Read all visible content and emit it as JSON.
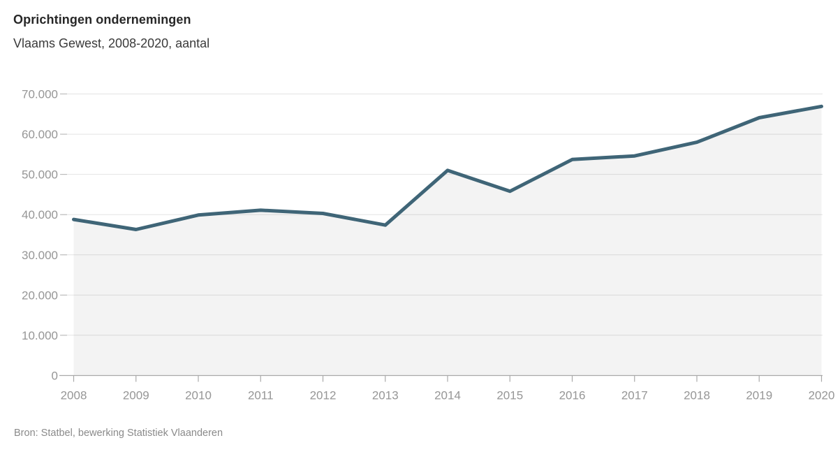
{
  "header": {
    "title": "Oprichtingen ondernemingen",
    "subtitle": "Vlaams Gewest, 2008-2020, aantal"
  },
  "footer": {
    "source": "Bron: Statbel, bewerking Statistiek Vlaanderen"
  },
  "chart_data": {
    "type": "area",
    "title": "Oprichtingen ondernemingen",
    "subtitle": "Vlaams Gewest, 2008-2020, aantal",
    "x": [
      2008,
      2009,
      2010,
      2011,
      2012,
      2013,
      2014,
      2015,
      2016,
      2017,
      2018,
      2019,
      2020
    ],
    "values": [
      38800,
      36300,
      39900,
      41100,
      40300,
      37400,
      51000,
      45800,
      53700,
      54600,
      58000,
      64100,
      66900
    ],
    "series_name": "Oprichtingen ondernemingen (aantal)",
    "xlabel": "",
    "ylabel": "",
    "ylim": [
      0,
      70000
    ],
    "y_tick_step": 10000,
    "y_tick_labels": [
      "0",
      "10.000",
      "20.000",
      "30.000",
      "40.000",
      "50.000",
      "60.000",
      "70.000"
    ],
    "grid": "horizontal",
    "legend": "none",
    "colors": {
      "line": "#3f6577",
      "area_fill": "#f3f3f3",
      "gridline": "#e4e4e4",
      "axis_line": "#a9a9a9",
      "tick": "#b3b3b3",
      "axis_label": "#969696",
      "title": "#272727",
      "subtitle": "#3a3a3a",
      "source": "#8a8a8a",
      "background": "#ffffff"
    }
  }
}
